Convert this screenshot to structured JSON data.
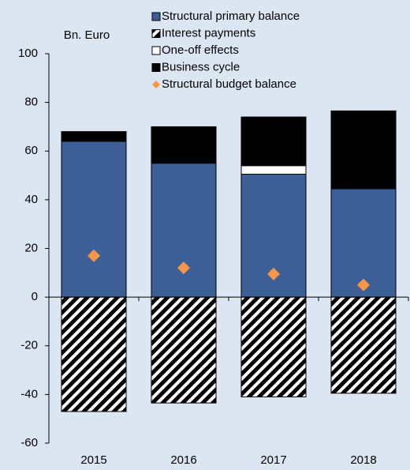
{
  "chart_data": {
    "type": "bar",
    "stacked": true,
    "y_label": "Bn. Euro",
    "categories": [
      "2015",
      "2016",
      "2017",
      "2018"
    ],
    "series": [
      {
        "name": "Structural primary balance",
        "color": "#3d5f97",
        "values": [
          64,
          55,
          50.5,
          44.5
        ]
      },
      {
        "name": "Interest payments",
        "color": "#000000",
        "pattern": "hatch",
        "values": [
          -47,
          -43.5,
          -41,
          -39.5
        ]
      },
      {
        "name": "One-off effects",
        "color": "#ffffff",
        "values": [
          0,
          0,
          3.5,
          0
        ]
      },
      {
        "name": "Business cycle",
        "color": "#000000",
        "values": [
          4,
          15,
          20,
          32
        ]
      },
      {
        "name": "Structural budget balance",
        "color": "#f79646",
        "type": "scatter",
        "values": [
          17,
          12,
          9.5,
          5
        ]
      }
    ],
    "ylim": [
      -60,
      100
    ],
    "yticks": [
      -60,
      -40,
      -20,
      0,
      20,
      40,
      60,
      80,
      100
    ],
    "grid": false,
    "legend": "top"
  }
}
